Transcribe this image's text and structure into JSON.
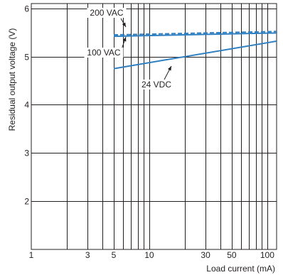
{
  "chart_data": {
    "type": "line",
    "xlabel": "Load current (mA)",
    "ylabel": "Residual output voltage (V)",
    "xscale": "log",
    "xlim": [
      1,
      120
    ],
    "ylim": [
      1,
      6.1
    ],
    "grid": true,
    "x_tick_labels": [
      {
        "value": 1,
        "label": "1"
      },
      {
        "value": 3,
        "label": "3"
      },
      {
        "value": 5,
        "label": "5"
      },
      {
        "value": 10,
        "label": "10"
      },
      {
        "value": 30,
        "label": "30"
      },
      {
        "value": 50,
        "label": "50"
      },
      {
        "value": 100,
        "label": "100"
      }
    ],
    "x_minor_grid": [
      2,
      4,
      6,
      7,
      8,
      9,
      20,
      40,
      60,
      70,
      80,
      90
    ],
    "y_ticks": [
      2,
      3,
      4,
      5,
      6
    ],
    "series": [
      {
        "name": "200 VAC",
        "style": "dashed",
        "x": [
          5,
          120
        ],
        "y": [
          5.45,
          5.52
        ],
        "label_anchor": [
          5.35,
          5.45
        ]
      },
      {
        "name": "100 VAC",
        "style": "solid",
        "x": [
          5,
          120
        ],
        "y": [
          5.42,
          5.49
        ],
        "label_anchor": [
          5.5,
          5.43
        ]
      },
      {
        "name": "24 VDC",
        "style": "solid",
        "x": [
          5,
          120
        ],
        "y": [
          4.75,
          5.32
        ],
        "label_anchor": [
          27,
          5.1
        ]
      }
    ],
    "colors": {
      "series": "#2f7fc1",
      "grid": "#231f20",
      "text": "#231f20"
    }
  }
}
